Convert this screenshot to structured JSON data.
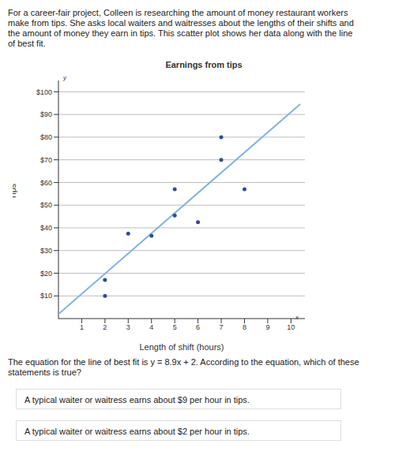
{
  "intro": "For a career-fair project, Colleen is researching the amount of money restaurant workers make from tips. She asks local waiters and waitresses about the lengths of their shifts and the amount of money they earn in tips. This scatter plot shows her data along with the line of best fit.",
  "chart_data": {
    "type": "scatter",
    "title": "Earnings from tips",
    "x_label": "Length of shift (hours)",
    "y_label": "Tips",
    "annotations": [
      "x",
      "y"
    ],
    "x": [
      2,
      2,
      3,
      4,
      5,
      5,
      6,
      7,
      7,
      8
    ],
    "values": [
      10,
      17,
      37.5,
      36.5,
      45.5,
      57,
      42.5,
      70,
      80,
      57
    ],
    "color": "#2c4f8f",
    "marker": "circle",
    "fit_line": {
      "x": [
        0,
        10.4
      ],
      "values": [
        2,
        94.6
      ],
      "color": "#7fb2e5",
      "line_style": "solid"
    },
    "xlim": [
      0,
      10.6
    ],
    "ylim": [
      0,
      105
    ],
    "xticks": [
      1,
      2,
      3,
      4,
      5,
      6,
      7,
      8,
      9,
      10
    ],
    "yticks": [
      {
        "value": 10,
        "label": "$10"
      },
      {
        "value": 20,
        "label": "$20"
      },
      {
        "value": 30,
        "label": "$30"
      },
      {
        "value": 40,
        "label": "$40"
      },
      {
        "value": 50,
        "label": "$50"
      },
      {
        "value": 60,
        "label": "$60"
      },
      {
        "value": 70,
        "label": "$70"
      },
      {
        "value": 80,
        "label": "$80"
      },
      {
        "value": 90,
        "label": "$90"
      },
      {
        "value": 100,
        "label": "$100"
      }
    ],
    "grid": true
  },
  "question": "The equation for the line of best fit is y = 8.9x + 2. According to the equation, which of these statements is true?",
  "options": [
    "A typical waiter or waitress earns about $9 per hour in tips.",
    "A typical waiter or waitress earns about $2 per hour in tips."
  ]
}
